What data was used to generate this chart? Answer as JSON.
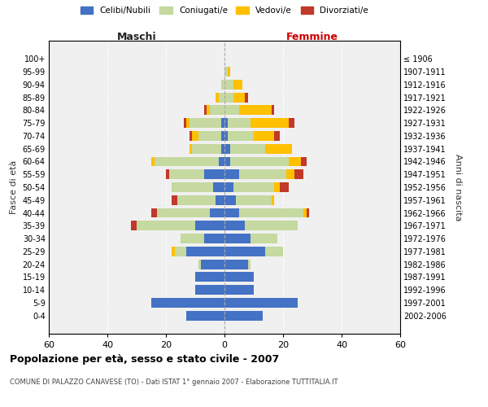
{
  "age_groups": [
    "0-4",
    "5-9",
    "10-14",
    "15-19",
    "20-24",
    "25-29",
    "30-34",
    "35-39",
    "40-44",
    "45-49",
    "50-54",
    "55-59",
    "60-64",
    "65-69",
    "70-74",
    "75-79",
    "80-84",
    "85-89",
    "90-94",
    "95-99",
    "100+"
  ],
  "birth_years": [
    "2002-2006",
    "1997-2001",
    "1992-1996",
    "1987-1991",
    "1982-1986",
    "1977-1981",
    "1972-1976",
    "1967-1971",
    "1962-1966",
    "1957-1961",
    "1952-1956",
    "1947-1951",
    "1942-1946",
    "1937-1941",
    "1932-1936",
    "1927-1931",
    "1922-1926",
    "1917-1921",
    "1912-1916",
    "1907-1911",
    "≤ 1906"
  ],
  "males": {
    "celibi": [
      13,
      25,
      10,
      10,
      8,
      13,
      7,
      10,
      5,
      3,
      4,
      7,
      2,
      1,
      1,
      1,
      0,
      0,
      0,
      0,
      0
    ],
    "coniugati": [
      0,
      0,
      0,
      0,
      1,
      4,
      8,
      20,
      18,
      13,
      14,
      12,
      22,
      10,
      8,
      11,
      5,
      2,
      1,
      0,
      0
    ],
    "vedovi": [
      0,
      0,
      0,
      0,
      0,
      1,
      0,
      0,
      0,
      0,
      0,
      0,
      1,
      1,
      2,
      1,
      1,
      1,
      0,
      0,
      0
    ],
    "divorziati": [
      0,
      0,
      0,
      0,
      0,
      0,
      0,
      2,
      2,
      2,
      0,
      1,
      0,
      0,
      1,
      1,
      1,
      0,
      0,
      0,
      0
    ]
  },
  "females": {
    "nubili": [
      13,
      25,
      10,
      10,
      8,
      14,
      9,
      7,
      5,
      4,
      3,
      5,
      2,
      2,
      1,
      1,
      0,
      0,
      0,
      0,
      0
    ],
    "coniugate": [
      0,
      0,
      0,
      0,
      1,
      6,
      9,
      18,
      22,
      12,
      14,
      16,
      20,
      12,
      9,
      8,
      5,
      3,
      3,
      1,
      0
    ],
    "vedove": [
      0,
      0,
      0,
      0,
      0,
      0,
      0,
      0,
      1,
      1,
      2,
      3,
      4,
      9,
      7,
      13,
      11,
      4,
      3,
      1,
      0
    ],
    "divorziate": [
      0,
      0,
      0,
      0,
      0,
      0,
      0,
      0,
      1,
      0,
      3,
      3,
      2,
      0,
      2,
      2,
      1,
      1,
      0,
      0,
      0
    ]
  },
  "colors": {
    "celibi_nubili": "#4472c4",
    "coniugati": "#c5d9a0",
    "vedovi": "#ffc000",
    "divorziati": "#c0392b"
  },
  "xlim": 60,
  "title": "Popolazione per età, sesso e stato civile - 2007",
  "subtitle": "COMUNE DI PALAZZO CANAVESE (TO) - Dati ISTAT 1° gennaio 2007 - Elaborazione TUTTITALIA.IT",
  "ylabel_left": "Fasce di età",
  "ylabel_right": "Anni di nascita",
  "xlabel_left": "Maschi",
  "xlabel_right": "Femmine",
  "bg_color": "#f0f0f0",
  "grid_color": "#cccccc"
}
